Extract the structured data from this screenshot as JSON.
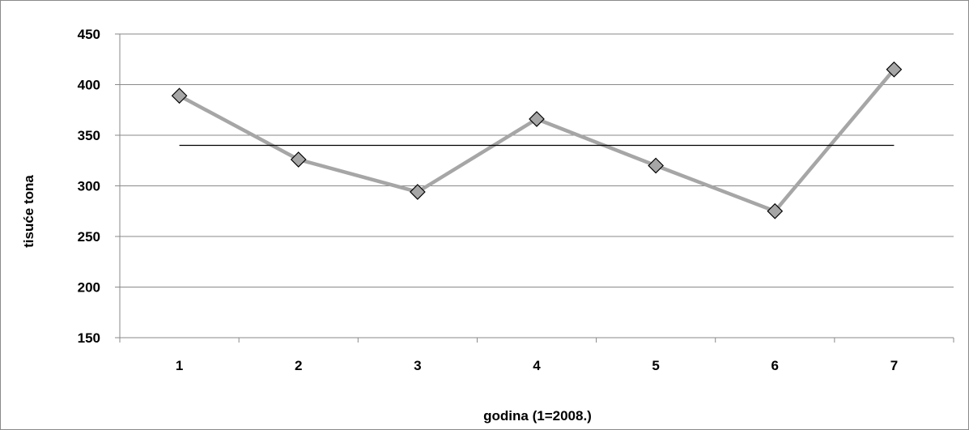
{
  "chart_data": {
    "type": "line",
    "title": "",
    "xlabel": "godina (1=2008.)",
    "ylabel": "tisuće tona",
    "categories": [
      "1",
      "2",
      "3",
      "4",
      "5",
      "6",
      "7"
    ],
    "series": [
      {
        "values": [
          389,
          326,
          294,
          366,
          320,
          275,
          415
        ],
        "color": "#a6a6a6",
        "marker": "diamond",
        "marker_fill": "#a6a6a6",
        "marker_stroke": "#000000"
      },
      {
        "values": [
          340,
          340,
          340,
          340,
          340,
          340,
          340
        ],
        "color": "#000000",
        "marker": "none"
      }
    ],
    "ylim": [
      150,
      450
    ],
    "yticks": [
      150,
      200,
      250,
      300,
      350,
      400,
      450
    ],
    "grid": true,
    "legend": "none"
  }
}
